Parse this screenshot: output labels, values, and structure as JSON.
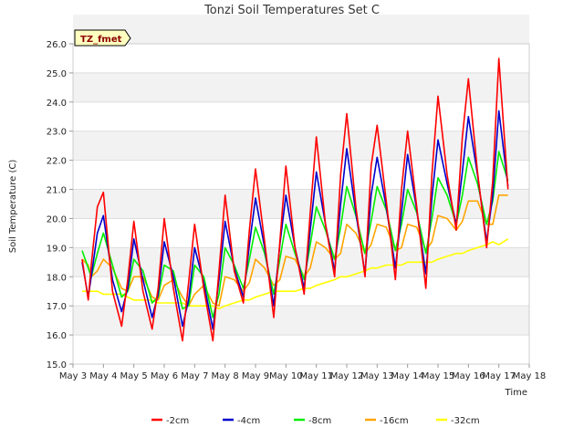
{
  "chart_data": {
    "type": "line",
    "title": "Tonzi Soil Temperatures Set C",
    "xlabel": "Time",
    "ylabel": "Soil Temperature (C)",
    "annotation": "TZ_fmet",
    "ylim": [
      15.0,
      26.0
    ],
    "yticks": [
      "15.0",
      "16.0",
      "17.0",
      "18.0",
      "19.0",
      "20.0",
      "21.0",
      "22.0",
      "23.0",
      "24.0",
      "25.0",
      "26.0"
    ],
    "xlim": [
      3,
      18
    ],
    "xticks": [
      "May 3",
      "May 4",
      "May 5",
      "May 6",
      "May 7",
      "May 8",
      "May 9",
      "May 10",
      "May 11",
      "May 12",
      "May 13",
      "May 14",
      "May 15",
      "May 16",
      "May 17",
      "May 18"
    ],
    "grid": true,
    "legend_position": "bottom",
    "x": [
      3.3,
      3.5,
      3.6,
      3.8,
      4.0,
      4.3,
      4.6,
      4.8,
      5.0,
      5.3,
      5.6,
      5.8,
      6.0,
      6.3,
      6.6,
      6.8,
      7.0,
      7.3,
      7.6,
      7.8,
      8.0,
      8.3,
      8.6,
      8.8,
      9.0,
      9.3,
      9.6,
      9.8,
      10.0,
      10.3,
      10.6,
      10.8,
      11.0,
      11.3,
      11.6,
      11.8,
      12.0,
      12.3,
      12.6,
      12.8,
      13.0,
      13.3,
      13.6,
      13.8,
      14.0,
      14.3,
      14.6,
      14.8,
      15.0,
      15.3,
      15.6,
      15.8,
      16.0,
      16.3,
      16.6,
      16.8,
      17.0,
      17.3
    ],
    "series": [
      {
        "name": "-2cm",
        "color": "#ff0000",
        "values": [
          18.6,
          17.2,
          18.4,
          20.4,
          20.9,
          17.5,
          16.3,
          17.9,
          19.9,
          17.5,
          16.2,
          17.6,
          20.0,
          17.6,
          15.8,
          17.8,
          19.8,
          17.6,
          15.8,
          18.2,
          20.8,
          18.2,
          17.1,
          19.6,
          21.7,
          19.2,
          16.6,
          19.2,
          21.8,
          19.0,
          17.4,
          20.2,
          22.8,
          19.8,
          18.0,
          21.5,
          23.6,
          20.4,
          18.0,
          21.8,
          23.2,
          20.6,
          17.9,
          21.0,
          23.0,
          20.4,
          17.6,
          21.5,
          24.2,
          21.5,
          19.6,
          22.8,
          24.8,
          21.6,
          19.0,
          21.3,
          25.5,
          21.0
        ]
      },
      {
        "name": "-4cm",
        "color": "#0000cc",
        "values": [
          18.5,
          17.3,
          18.0,
          19.5,
          20.1,
          17.9,
          16.8,
          17.6,
          19.3,
          17.9,
          16.6,
          17.4,
          19.2,
          18.0,
          16.3,
          17.2,
          19.0,
          17.8,
          16.2,
          17.9,
          19.9,
          18.3,
          17.3,
          19.1,
          20.7,
          19.0,
          17.0,
          19.1,
          20.8,
          19.0,
          17.6,
          19.6,
          21.6,
          19.8,
          18.2,
          20.5,
          22.4,
          20.2,
          18.1,
          20.8,
          22.1,
          20.4,
          18.3,
          20.2,
          22.2,
          20.3,
          18.1,
          20.7,
          22.7,
          21.2,
          19.8,
          21.6,
          23.5,
          21.5,
          19.2,
          20.8,
          23.7,
          21.1
        ]
      },
      {
        "name": "-8cm",
        "color": "#00ee00",
        "values": [
          18.9,
          18.3,
          18.0,
          18.8,
          19.5,
          18.4,
          17.3,
          17.5,
          18.6,
          18.2,
          17.1,
          17.3,
          18.4,
          18.2,
          16.9,
          17.0,
          18.4,
          18.0,
          16.6,
          17.4,
          19.0,
          18.4,
          17.6,
          18.6,
          19.7,
          18.8,
          17.4,
          18.6,
          19.8,
          18.8,
          17.9,
          19.1,
          20.4,
          19.6,
          18.6,
          19.7,
          21.1,
          20.1,
          18.8,
          19.9,
          21.1,
          20.3,
          18.9,
          19.8,
          21.0,
          20.2,
          18.8,
          20.0,
          21.4,
          20.8,
          19.8,
          20.8,
          22.1,
          21.2,
          19.8,
          20.6,
          22.3,
          21.3
        ]
      },
      {
        "name": "-16cm",
        "color": "#ffa500",
        "values": [
          18.6,
          18.4,
          18.0,
          18.2,
          18.6,
          18.3,
          17.6,
          17.5,
          18.0,
          18.0,
          17.3,
          17.2,
          17.7,
          17.9,
          17.3,
          17.0,
          17.4,
          17.7,
          17.1,
          17.0,
          18.0,
          17.9,
          17.5,
          17.8,
          18.6,
          18.3,
          17.7,
          17.9,
          18.7,
          18.6,
          18.0,
          18.3,
          19.2,
          19.0,
          18.6,
          18.8,
          19.8,
          19.5,
          18.8,
          19.1,
          19.8,
          19.7,
          18.9,
          19.0,
          19.8,
          19.7,
          18.9,
          19.2,
          20.1,
          20.0,
          19.6,
          19.9,
          20.6,
          20.6,
          19.8,
          19.8,
          20.8,
          20.8
        ]
      },
      {
        "name": "-32cm",
        "color": "#ffff00",
        "values": [
          17.5,
          17.5,
          17.5,
          17.5,
          17.4,
          17.4,
          17.4,
          17.3,
          17.2,
          17.2,
          17.2,
          17.1,
          17.1,
          17.1,
          17.1,
          17.0,
          17.0,
          17.0,
          17.0,
          16.9,
          17.0,
          17.1,
          17.2,
          17.2,
          17.3,
          17.4,
          17.5,
          17.5,
          17.5,
          17.5,
          17.6,
          17.6,
          17.7,
          17.8,
          17.9,
          18.0,
          18.0,
          18.1,
          18.2,
          18.3,
          18.3,
          18.4,
          18.4,
          18.4,
          18.5,
          18.5,
          18.5,
          18.5,
          18.6,
          18.7,
          18.8,
          18.8,
          18.9,
          19.0,
          19.1,
          19.2,
          19.1,
          19.3
        ]
      }
    ]
  }
}
